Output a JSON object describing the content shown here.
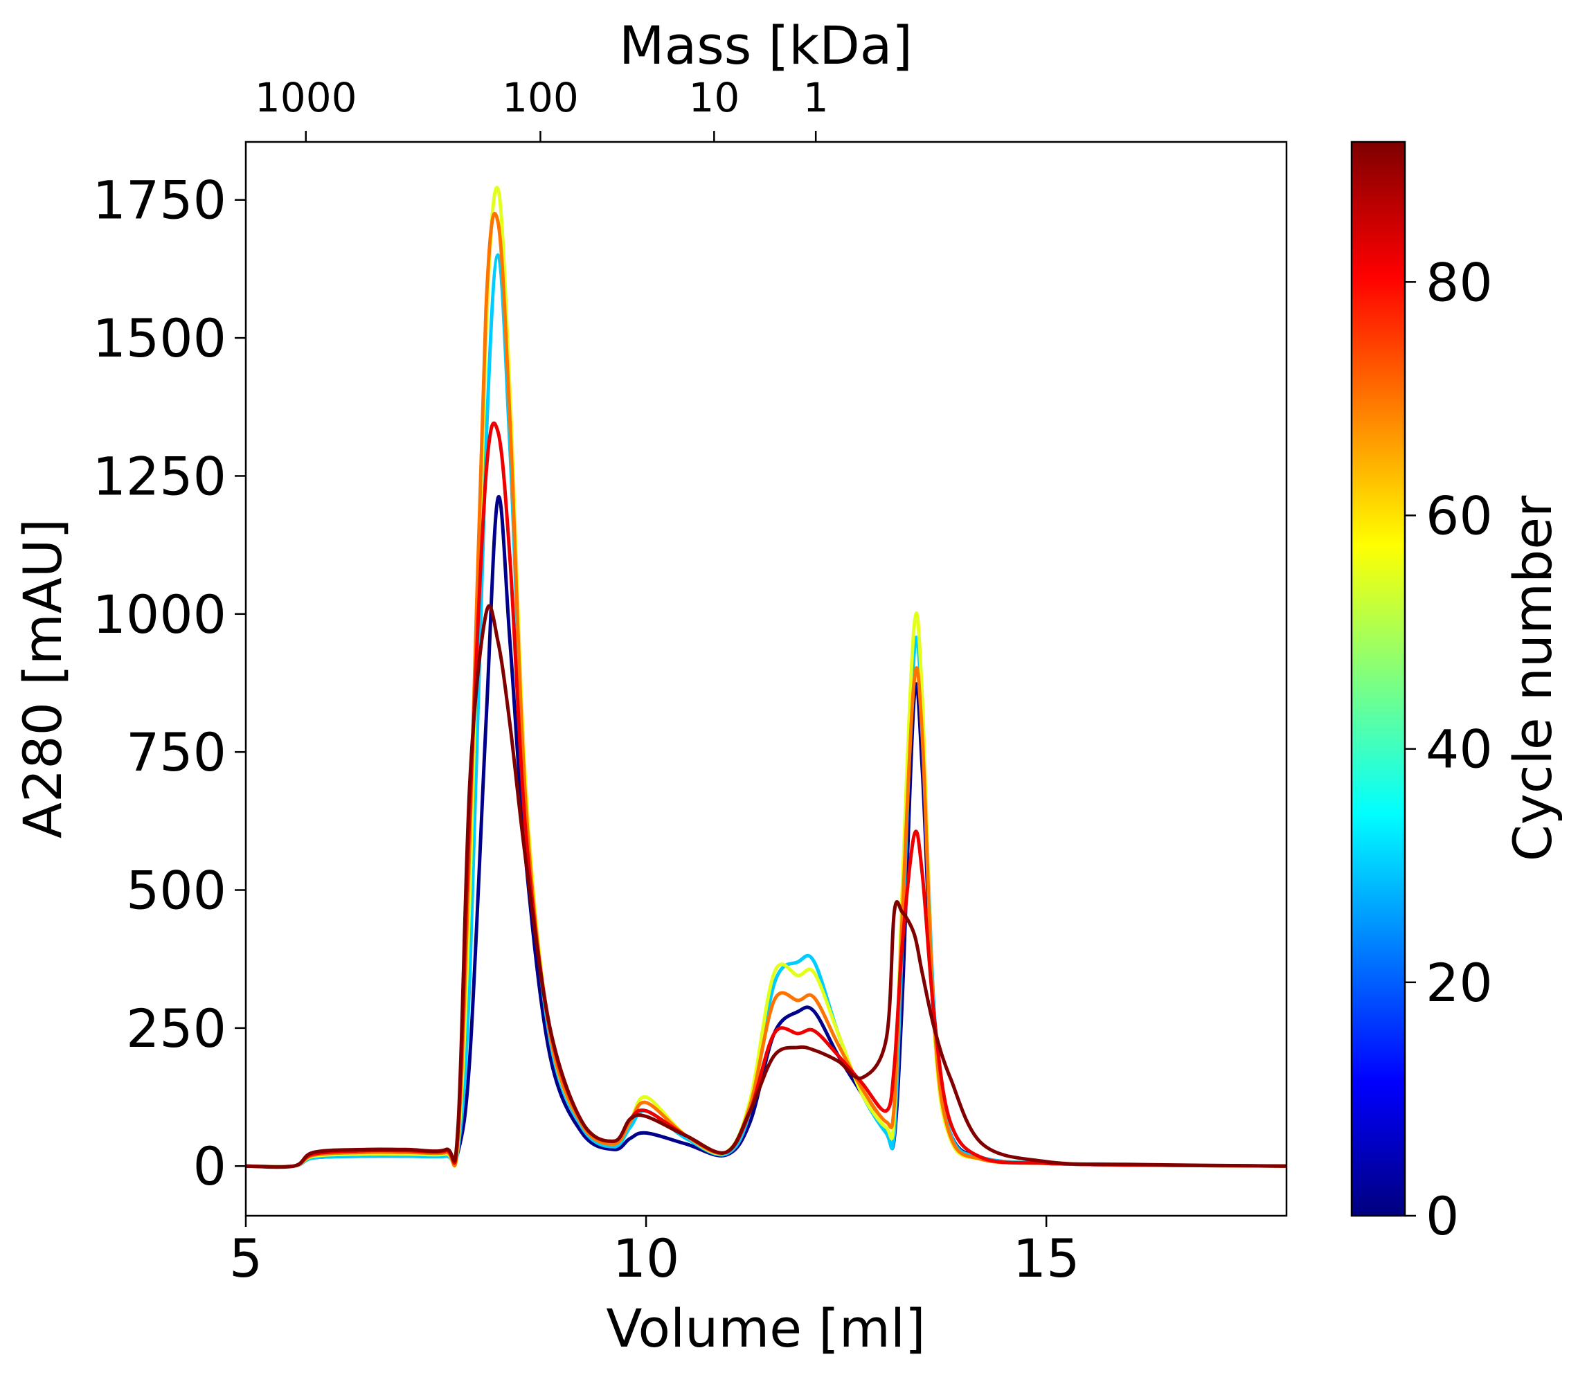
{
  "chart_data": {
    "type": "line",
    "title": "",
    "xlabel": "Volume [ml]",
    "ylabel": "A280 [mAU]",
    "top_xlabel": "Mass [kDa]",
    "xlim": [
      5,
      18
    ],
    "ylim": [
      -90,
      1855
    ],
    "x_ticks": [
      5,
      10,
      15
    ],
    "y_ticks": [
      0,
      250,
      500,
      750,
      1000,
      1250,
      1500,
      1750
    ],
    "top_ticks": [
      {
        "label": "1000",
        "volume": 5.75
      },
      {
        "label": "100",
        "volume": 8.68
      },
      {
        "label": "10",
        "volume": 10.85
      },
      {
        "label": "1",
        "volume": 12.12
      }
    ],
    "colorbar": {
      "label": "Cycle number",
      "range": [
        0,
        92
      ],
      "ticks": [
        0,
        20,
        40,
        60,
        80
      ],
      "colormap": "jet",
      "colors": [
        "#00007f",
        "#0000ff",
        "#007fff",
        "#00ffff",
        "#7fff7f",
        "#ffff00",
        "#ff7f00",
        "#ff0000",
        "#7f0000"
      ]
    },
    "grid": false,
    "legend": "none",
    "representative_series": [
      {
        "cycle": 1,
        "x": [
          5.0,
          5.6,
          5.85,
          6.5,
          7.0,
          7.5,
          7.65,
          7.8,
          8.0,
          8.15,
          8.3,
          8.5,
          8.8,
          9.2,
          9.6,
          9.8,
          10.0,
          10.5,
          11.0,
          11.3,
          11.6,
          11.9,
          12.1,
          12.4,
          12.7,
          13.0,
          13.1,
          13.2,
          13.35,
          13.45,
          13.6,
          13.8,
          14.2,
          15.0,
          16.0,
          18.0
        ],
        "y": [
          0,
          0,
          15,
          18,
          18,
          18,
          25,
          200,
          800,
          1210,
          950,
          550,
          200,
          60,
          30,
          50,
          60,
          40,
          20,
          80,
          240,
          280,
          280,
          200,
          130,
          60,
          50,
          300,
          850,
          720,
          250,
          60,
          15,
          5,
          2,
          0
        ]
      },
      {
        "cycle": 30,
        "x": [
          5.0,
          5.6,
          5.85,
          6.5,
          7.0,
          7.5,
          7.65,
          7.8,
          8.0,
          8.15,
          8.3,
          8.5,
          8.8,
          9.2,
          9.6,
          9.8,
          10.0,
          10.5,
          11.0,
          11.3,
          11.6,
          11.9,
          12.1,
          12.4,
          12.7,
          13.0,
          13.1,
          13.2,
          13.35,
          13.45,
          13.6,
          13.8,
          14.2,
          15.0,
          16.0,
          18.0
        ],
        "y": [
          0,
          0,
          15,
          18,
          18,
          18,
          30,
          350,
          1300,
          1650,
          1300,
          650,
          230,
          70,
          35,
          70,
          100,
          50,
          22,
          100,
          330,
          370,
          370,
          240,
          130,
          60,
          60,
          400,
          930,
          820,
          280,
          60,
          15,
          5,
          2,
          0
        ]
      },
      {
        "cycle": 55,
        "x": [
          5.0,
          5.6,
          5.85,
          6.5,
          7.0,
          7.5,
          7.65,
          7.8,
          8.0,
          8.15,
          8.3,
          8.5,
          8.8,
          9.2,
          9.6,
          9.8,
          10.0,
          10.5,
          11.0,
          11.3,
          11.6,
          11.9,
          12.1,
          12.4,
          12.7,
          13.0,
          13.1,
          13.2,
          13.35,
          13.45,
          13.6,
          13.8,
          14.2,
          15.0,
          16.0,
          18.0
        ],
        "y": [
          0,
          0,
          18,
          22,
          22,
          22,
          40,
          500,
          1500,
          1770,
          1400,
          680,
          240,
          75,
          40,
          80,
          125,
          55,
          25,
          120,
          350,
          345,
          350,
          240,
          130,
          70,
          90,
          500,
          980,
          850,
          250,
          50,
          12,
          5,
          2,
          0
        ]
      },
      {
        "cycle": 70,
        "x": [
          5.0,
          5.6,
          5.85,
          6.5,
          7.0,
          7.5,
          7.65,
          7.8,
          8.0,
          8.15,
          8.3,
          8.5,
          8.8,
          9.2,
          9.6,
          9.8,
          10.0,
          10.5,
          11.0,
          11.3,
          11.6,
          11.9,
          12.1,
          12.4,
          12.7,
          13.0,
          13.1,
          13.2,
          13.35,
          13.45,
          13.6,
          13.8,
          14.2,
          15.0,
          16.0,
          18.0
        ],
        "y": [
          0,
          0,
          20,
          25,
          25,
          25,
          50,
          600,
          1550,
          1710,
          1350,
          650,
          240,
          75,
          40,
          80,
          115,
          55,
          25,
          110,
          300,
          300,
          305,
          220,
          140,
          80,
          110,
          450,
          880,
          780,
          260,
          55,
          12,
          5,
          2,
          0
        ]
      },
      {
        "cycle": 82,
        "x": [
          5.0,
          5.6,
          5.85,
          6.5,
          7.0,
          7.5,
          7.65,
          7.8,
          8.0,
          8.15,
          8.3,
          8.5,
          8.8,
          9.2,
          9.6,
          9.8,
          10.0,
          10.5,
          11.0,
          11.3,
          11.6,
          11.9,
          12.1,
          12.4,
          12.7,
          13.0,
          13.1,
          13.2,
          13.35,
          13.45,
          13.6,
          13.8,
          14.2,
          15.0,
          16.0,
          18.0
        ],
        "y": [
          0,
          0,
          22,
          28,
          28,
          28,
          60,
          650,
          1250,
          1330,
          1100,
          600,
          250,
          80,
          45,
          85,
          100,
          55,
          25,
          100,
          240,
          240,
          245,
          200,
          150,
          100,
          180,
          400,
          600,
          530,
          270,
          80,
          15,
          5,
          2,
          0
        ]
      },
      {
        "cycle": 92,
        "x": [
          5.0,
          5.6,
          5.85,
          6.5,
          7.0,
          7.5,
          7.65,
          7.8,
          8.0,
          8.15,
          8.3,
          8.5,
          8.8,
          9.2,
          9.6,
          9.8,
          10.0,
          10.5,
          11.0,
          11.3,
          11.6,
          11.9,
          12.1,
          12.4,
          12.7,
          13.0,
          13.1,
          13.2,
          13.35,
          13.45,
          13.6,
          13.8,
          14.2,
          15.0,
          16.0,
          18.0
        ],
        "y": [
          0,
          0,
          25,
          30,
          30,
          30,
          70,
          700,
          1000,
          950,
          800,
          550,
          250,
          80,
          45,
          85,
          90,
          55,
          25,
          100,
          200,
          215,
          210,
          190,
          160,
          230,
          460,
          460,
          420,
          350,
          250,
          160,
          40,
          8,
          3,
          0
        ]
      }
    ]
  }
}
